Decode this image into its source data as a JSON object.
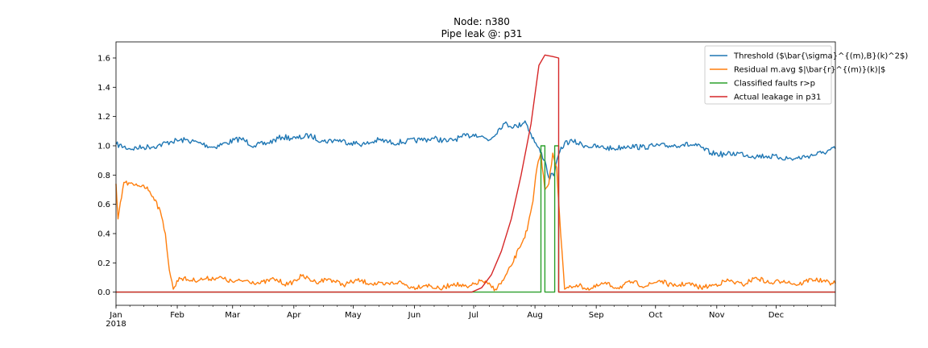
{
  "chart_data": {
    "type": "line",
    "title": "Node: n380",
    "subtitle": "Pipe leak @: p31",
    "xlabel": "",
    "ylabel": "",
    "xlim": [
      "2018-01-01",
      "2018-12-31"
    ],
    "ylim": [
      -0.09,
      1.71
    ],
    "yticks": [
      0.0,
      0.2,
      0.4,
      0.6,
      0.8,
      1.0,
      1.2,
      1.4,
      1.6
    ],
    "ytick_labels": [
      "0.0",
      "0.2",
      "0.4",
      "0.6",
      "0.8",
      "1.0",
      "1.2",
      "1.4",
      "1.6"
    ],
    "xticks": [
      {
        "date": "2018-01-01",
        "label": "Jan",
        "sublabel": "2018"
      },
      {
        "date": "2018-02-01",
        "label": "Feb"
      },
      {
        "date": "2018-03-01",
        "label": "Mar"
      },
      {
        "date": "2018-04-01",
        "label": "Apr"
      },
      {
        "date": "2018-05-01",
        "label": "May"
      },
      {
        "date": "2018-06-01",
        "label": "Jun"
      },
      {
        "date": "2018-07-01",
        "label": "Jul"
      },
      {
        "date": "2018-08-01",
        "label": "Aug"
      },
      {
        "date": "2018-09-01",
        "label": "Sep"
      },
      {
        "date": "2018-10-01",
        "label": "Oct"
      },
      {
        "date": "2018-11-01",
        "label": "Nov"
      },
      {
        "date": "2018-12-01",
        "label": "Dec"
      }
    ],
    "grid": false,
    "legend_position": "top-right",
    "series": [
      {
        "name": "Threshold ($\\bar{\\sigma}^{(m),B}(k)^2$)",
        "color": "#1f77b4",
        "x": [
          "2018-01-01",
          "2018-01-08",
          "2018-01-15",
          "2018-01-22",
          "2018-01-29",
          "2018-02-05",
          "2018-02-12",
          "2018-02-19",
          "2018-02-26",
          "2018-03-05",
          "2018-03-12",
          "2018-03-19",
          "2018-03-26",
          "2018-04-02",
          "2018-04-09",
          "2018-04-16",
          "2018-04-23",
          "2018-04-30",
          "2018-05-07",
          "2018-05-14",
          "2018-05-21",
          "2018-05-28",
          "2018-06-04",
          "2018-06-11",
          "2018-06-18",
          "2018-06-25",
          "2018-07-02",
          "2018-07-09",
          "2018-07-16",
          "2018-07-23",
          "2018-07-27",
          "2018-07-30",
          "2018-08-02",
          "2018-08-06",
          "2018-08-08",
          "2018-08-11",
          "2018-08-13",
          "2018-08-16",
          "2018-08-20",
          "2018-08-27",
          "2018-09-03",
          "2018-09-10",
          "2018-09-17",
          "2018-09-24",
          "2018-10-01",
          "2018-10-08",
          "2018-10-15",
          "2018-10-22",
          "2018-10-29",
          "2018-11-05",
          "2018-11-12",
          "2018-11-19",
          "2018-11-26",
          "2018-12-03",
          "2018-12-10",
          "2018-12-17",
          "2018-12-24",
          "2018-12-31"
        ],
        "y": [
          1.01,
          0.98,
          0.99,
          1.0,
          1.03,
          1.04,
          1.02,
          0.99,
          1.02,
          1.05,
          1.0,
          1.02,
          1.06,
          1.05,
          1.07,
          1.03,
          1.04,
          1.02,
          1.01,
          1.04,
          1.02,
          1.03,
          1.04,
          1.05,
          1.03,
          1.06,
          1.08,
          1.04,
          1.15,
          1.13,
          1.17,
          1.08,
          1.0,
          0.9,
          0.78,
          0.82,
          0.94,
          1.02,
          1.03,
          1.0,
          0.99,
          0.98,
          1.0,
          0.99,
          1.0,
          1.0,
          1.01,
          1.0,
          0.95,
          0.94,
          0.95,
          0.93,
          0.93,
          0.92,
          0.91,
          0.93,
          0.95,
          0.98
        ]
      },
      {
        "name": "Residual m.avg $|\\bar{r}^{(m)}(k)|$",
        "color": "#ff7f0e",
        "x": [
          "2018-01-01",
          "2018-01-02",
          "2018-01-05",
          "2018-01-10",
          "2018-01-15",
          "2018-01-18",
          "2018-01-21",
          "2018-01-24",
          "2018-01-26",
          "2018-01-28",
          "2018-01-30",
          "2018-02-02",
          "2018-02-08",
          "2018-02-15",
          "2018-02-22",
          "2018-03-01",
          "2018-03-08",
          "2018-03-15",
          "2018-03-22",
          "2018-03-29",
          "2018-04-05",
          "2018-04-12",
          "2018-04-19",
          "2018-04-26",
          "2018-05-03",
          "2018-05-10",
          "2018-05-17",
          "2018-05-24",
          "2018-05-31",
          "2018-06-07",
          "2018-06-14",
          "2018-06-21",
          "2018-06-28",
          "2018-07-05",
          "2018-07-12",
          "2018-07-16",
          "2018-07-20",
          "2018-07-24",
          "2018-07-28",
          "2018-07-31",
          "2018-08-02",
          "2018-08-04",
          "2018-08-06",
          "2018-08-08",
          "2018-08-10",
          "2018-08-12",
          "2018-08-14",
          "2018-08-16",
          "2018-08-18",
          "2018-08-22",
          "2018-08-29",
          "2018-09-05",
          "2018-09-12",
          "2018-09-19",
          "2018-09-26",
          "2018-10-03",
          "2018-10-10",
          "2018-10-17",
          "2018-10-24",
          "2018-10-31",
          "2018-11-07",
          "2018-11-14",
          "2018-11-21",
          "2018-11-28",
          "2018-12-05",
          "2018-12-12",
          "2018-12-19",
          "2018-12-26",
          "2018-12-31"
        ],
        "y": [
          0.74,
          0.5,
          0.75,
          0.73,
          0.73,
          0.69,
          0.63,
          0.52,
          0.4,
          0.15,
          0.02,
          0.1,
          0.08,
          0.09,
          0.1,
          0.07,
          0.08,
          0.06,
          0.09,
          0.05,
          0.11,
          0.07,
          0.09,
          0.05,
          0.08,
          0.06,
          0.05,
          0.07,
          0.03,
          0.05,
          0.02,
          0.06,
          0.03,
          0.08,
          0.02,
          0.08,
          0.18,
          0.3,
          0.42,
          0.62,
          0.85,
          0.95,
          0.7,
          0.74,
          0.95,
          0.85,
          0.4,
          0.02,
          0.03,
          0.05,
          0.02,
          0.06,
          0.03,
          0.07,
          0.04,
          0.08,
          0.04,
          0.06,
          0.03,
          0.05,
          0.08,
          0.05,
          0.1,
          0.06,
          0.08,
          0.05,
          0.09,
          0.07,
          0.06
        ]
      },
      {
        "name": "Classified faults r>p",
        "color": "#2ca02c",
        "x": [
          "2018-01-01",
          "2018-08-04",
          "2018-08-04",
          "2018-08-06",
          "2018-08-06",
          "2018-08-11",
          "2018-08-11",
          "2018-08-13",
          "2018-08-13",
          "2018-12-31"
        ],
        "y": [
          0,
          0,
          1,
          1,
          0,
          0,
          1,
          1,
          0,
          0
        ]
      },
      {
        "name": "Actual leakage in p31",
        "color": "#d62728",
        "x": [
          "2018-01-01",
          "2018-06-30",
          "2018-07-05",
          "2018-07-10",
          "2018-07-15",
          "2018-07-20",
          "2018-07-25",
          "2018-07-30",
          "2018-08-03",
          "2018-08-06",
          "2018-08-10",
          "2018-08-13",
          "2018-08-13",
          "2018-12-31"
        ],
        "y": [
          0,
          0,
          0.03,
          0.12,
          0.28,
          0.5,
          0.8,
          1.15,
          1.55,
          1.62,
          1.61,
          1.6,
          0,
          0
        ]
      }
    ]
  }
}
